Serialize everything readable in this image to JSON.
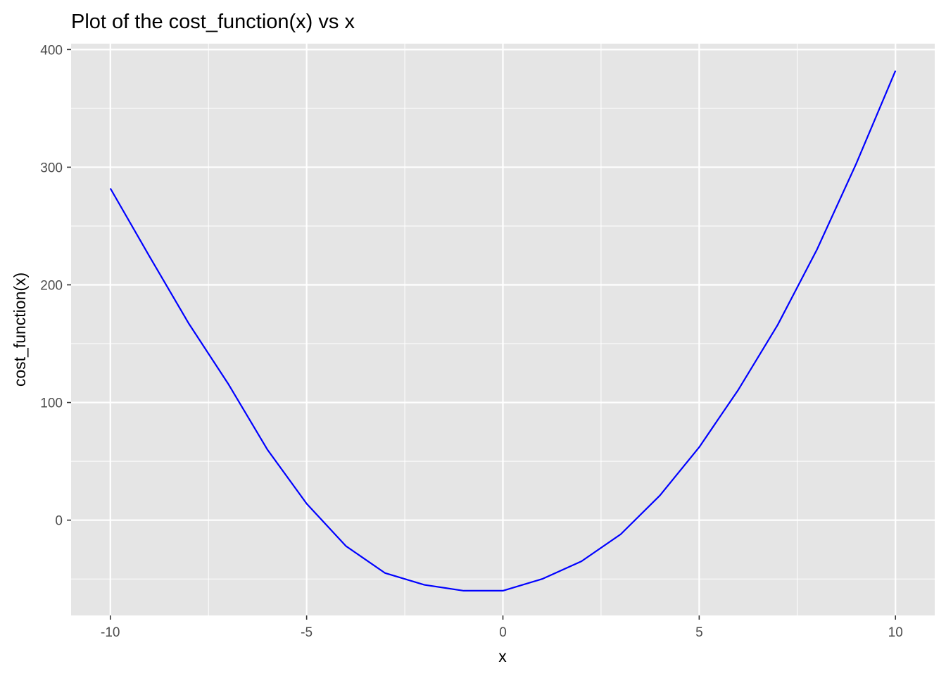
{
  "chart_data": {
    "type": "line",
    "title": "Plot of the cost_function(x) vs x",
    "xlabel": "x",
    "ylabel": "cost_function(x)",
    "xlim": [
      -11,
      11
    ],
    "ylim": [
      -81,
      405
    ],
    "xticks": [
      -10,
      -5,
      0,
      5,
      10
    ],
    "xtick_labels": [
      "-10",
      "-5",
      "0",
      "5",
      "10"
    ],
    "yticks": [
      0,
      100,
      200,
      300,
      400
    ],
    "ytick_labels": [
      "0",
      "100",
      "200",
      "300",
      "400"
    ],
    "grid": true,
    "legend": "none",
    "series": [
      {
        "color": "#0000ff",
        "x": [
          -10,
          -9,
          -8,
          -7,
          -6,
          -5,
          -4,
          -3,
          -2,
          -1,
          -0.6,
          0,
          1,
          2,
          3,
          4,
          5,
          6,
          7,
          8,
          9,
          10
        ],
        "y": [
          282,
          224,
          167,
          116,
          60,
          14,
          -22,
          -45,
          -55,
          -60,
          -60,
          -60,
          -50,
          -35,
          -12,
          21,
          62,
          111,
          166,
          230,
          303,
          382
        ]
      }
    ]
  },
  "colors": {
    "panel_background": "#e5e5e5",
    "grid": "#ffffff",
    "line": "#0000ff"
  }
}
